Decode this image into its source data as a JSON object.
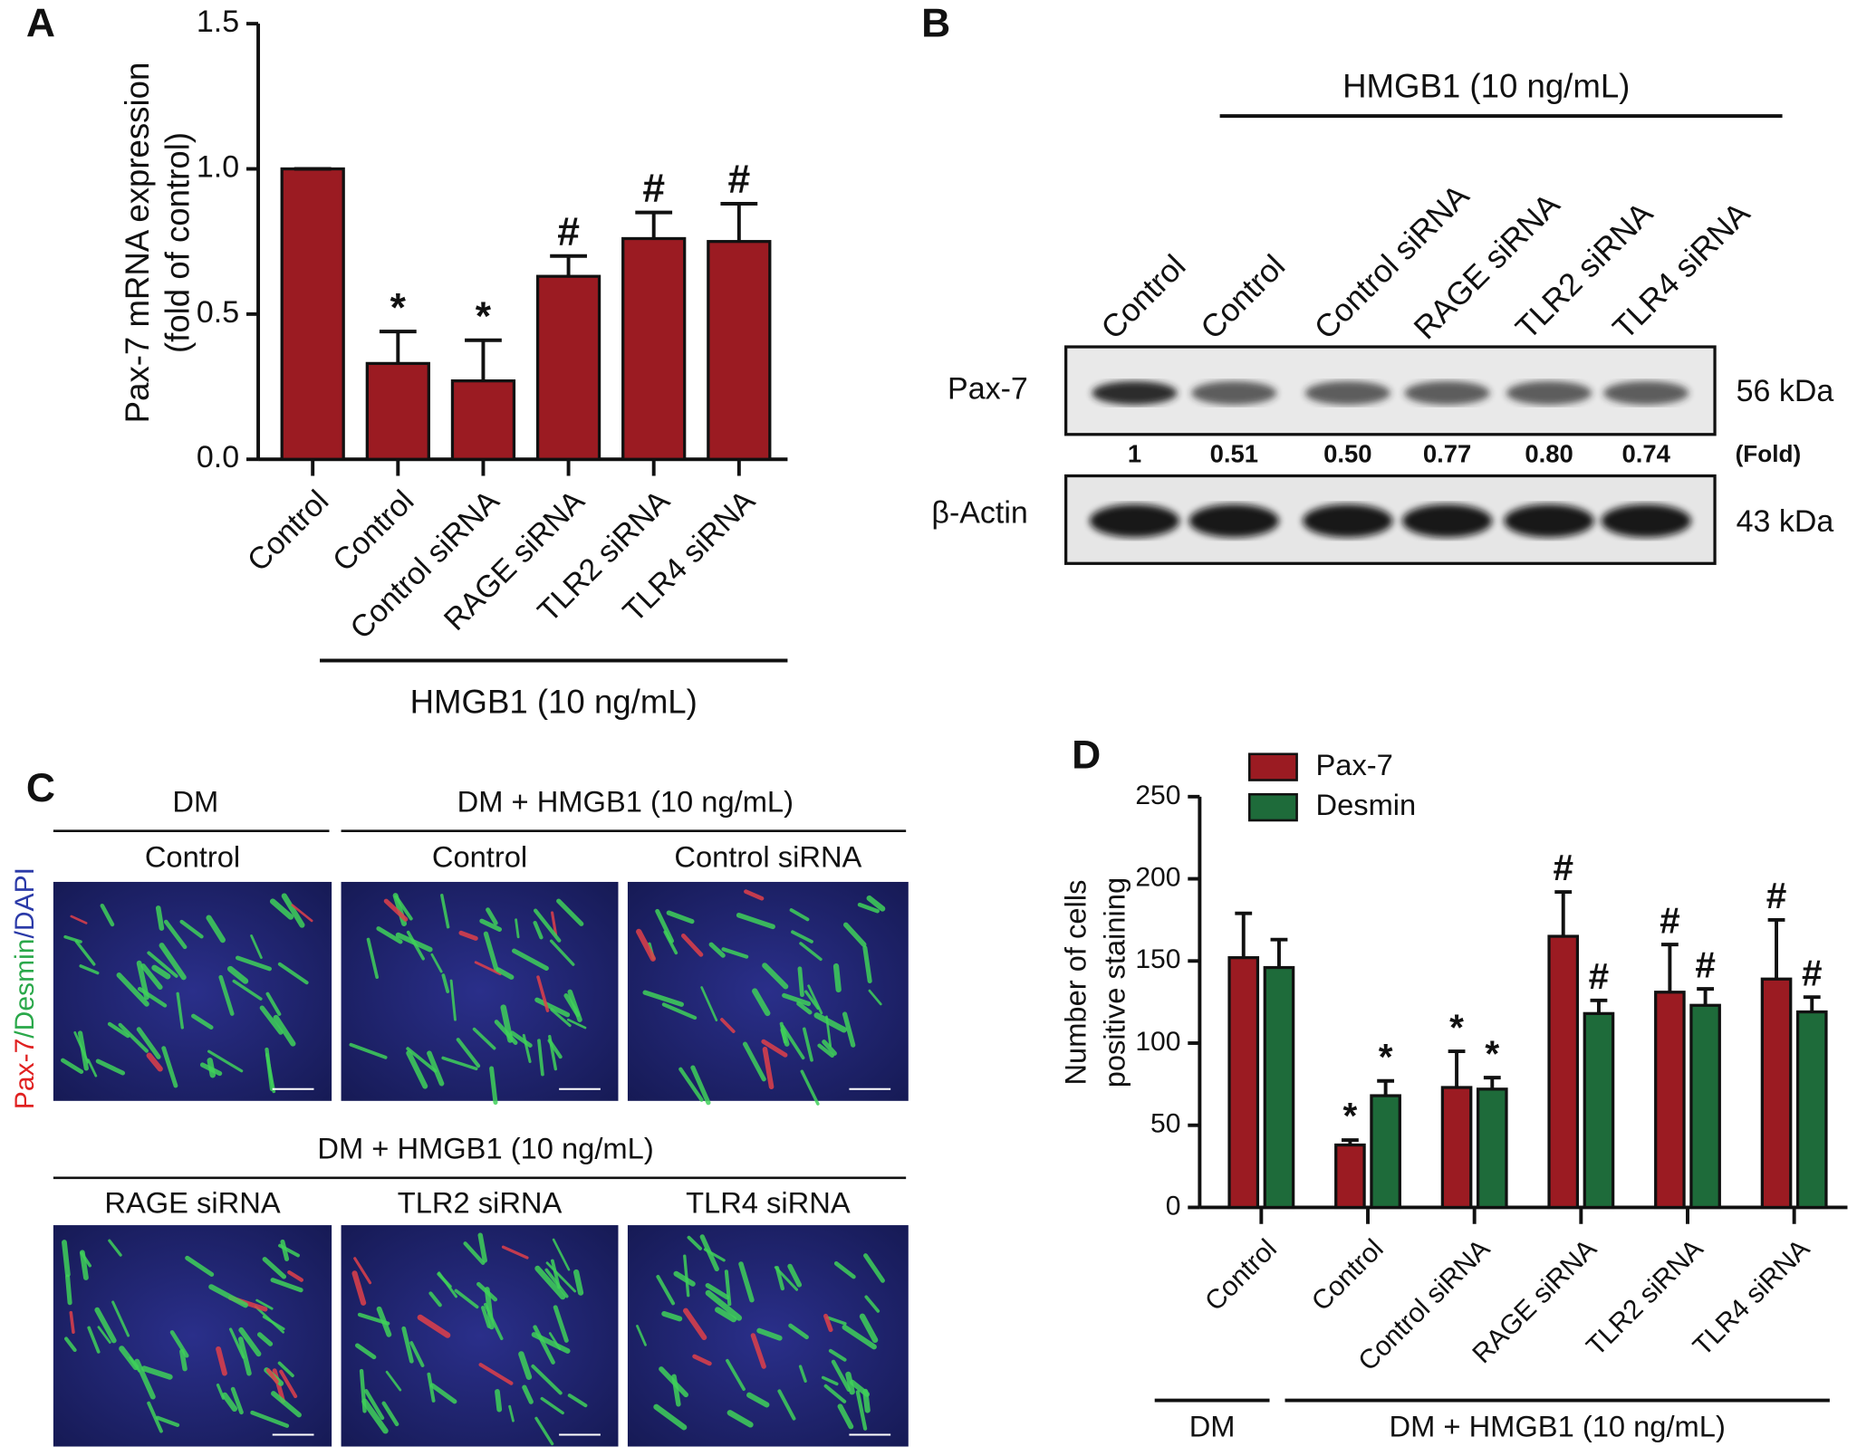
{
  "panel_labels": [
    "A",
    "B",
    "C",
    "D"
  ],
  "chart_data": [
    {
      "type": "bar",
      "ylabel": [
        "Pax-7 mRNA expression",
        "(fold of control)"
      ],
      "categories": [
        "Control",
        "Control",
        "Control siRNA",
        "RAGE siRNA",
        "TLR2 siRNA",
        "TLR4 siRNA"
      ],
      "values": [
        1.0,
        0.33,
        0.27,
        0.63,
        0.76,
        0.75
      ],
      "errors": [
        0,
        0.11,
        0.14,
        0.07,
        0.09,
        0.13
      ],
      "annotations": [
        null,
        "*",
        "*",
        "#",
        "#",
        "#"
      ],
      "color": "#9b1b22",
      "ylim": [
        0,
        1.5
      ],
      "yticks": [
        {
          "value": 0,
          "label": "0.0"
        },
        {
          "value": 0.5,
          "label": "0.5"
        },
        {
          "value": 1.0,
          "label": "1.0"
        },
        {
          "value": 1.5,
          "label": "1.5"
        }
      ],
      "groups": [
        {
          "label": "HMGB1 (10 ng/mL)"
        }
      ]
    },
    {
      "type": "bar",
      "ylabel": [
        "Number of cells",
        "positive staining"
      ],
      "categories": [
        "Control",
        "Control",
        "Control siRNA",
        "RAGE siRNA",
        "TLR2 siRNA",
        "TLR4 siRNA"
      ],
      "series": [
        {
          "name": "Pax-7",
          "color": "#9b1b22",
          "values": [
            152,
            38,
            73,
            165,
            131,
            139
          ],
          "errors": [
            27,
            3,
            22,
            27,
            29,
            36
          ],
          "annotations": [
            null,
            "*",
            "*",
            "#",
            "#",
            "#"
          ]
        },
        {
          "name": "Desmin",
          "color": "#1e6b3a",
          "values": [
            146,
            68,
            72,
            118,
            123,
            119
          ],
          "errors": [
            17,
            9,
            7,
            8,
            10,
            9
          ],
          "annotations": [
            null,
            "*",
            "*",
            "#",
            "#",
            "#"
          ]
        }
      ],
      "legend": "top-left",
      "ylim": [
        0,
        250
      ],
      "yticks": [
        0,
        50,
        100,
        150,
        200,
        250
      ],
      "groups": [
        {
          "label": "DM"
        },
        {
          "label": "DM + HMGB1 (10 ng/mL)"
        }
      ]
    }
  ],
  "blot": {
    "title": "HMGB1 (10 ng/mL)",
    "lanes": [
      "Control",
      "Control",
      "Control siRNA",
      "RAGE siRNA",
      "TLR2 siRNA",
      "TLR4 siRNA"
    ],
    "rows": [
      {
        "label": "Pax-7",
        "size": "56 kDa"
      },
      {
        "label": "β-Actin",
        "size": "43 kDa"
      }
    ],
    "fold": {
      "values": [
        "1",
        "0.51",
        "0.50",
        "0.77",
        "0.80",
        "0.74"
      ],
      "label": "(Fold)"
    }
  },
  "micrographs": {
    "stain": [
      {
        "text": "Pax-7",
        "color": "#e02020"
      },
      {
        "text": "/Desmin",
        "color": "#2aa84a"
      },
      {
        "text": "/DAPI",
        "color": "#2b3aa8"
      }
    ],
    "rows": [
      {
        "headers": [
          {
            "label": "DM"
          },
          {
            "label": "DM + HMGB1 (10 ng/mL)"
          }
        ],
        "panels": [
          "Control",
          "Control",
          "Control siRNA"
        ]
      },
      {
        "headers": [
          {
            "label": "DM + HMGB1 (10 ng/mL)"
          }
        ],
        "panels": [
          "RAGE siRNA",
          "TLR2 siRNA",
          "TLR4 siRNA"
        ]
      }
    ]
  }
}
